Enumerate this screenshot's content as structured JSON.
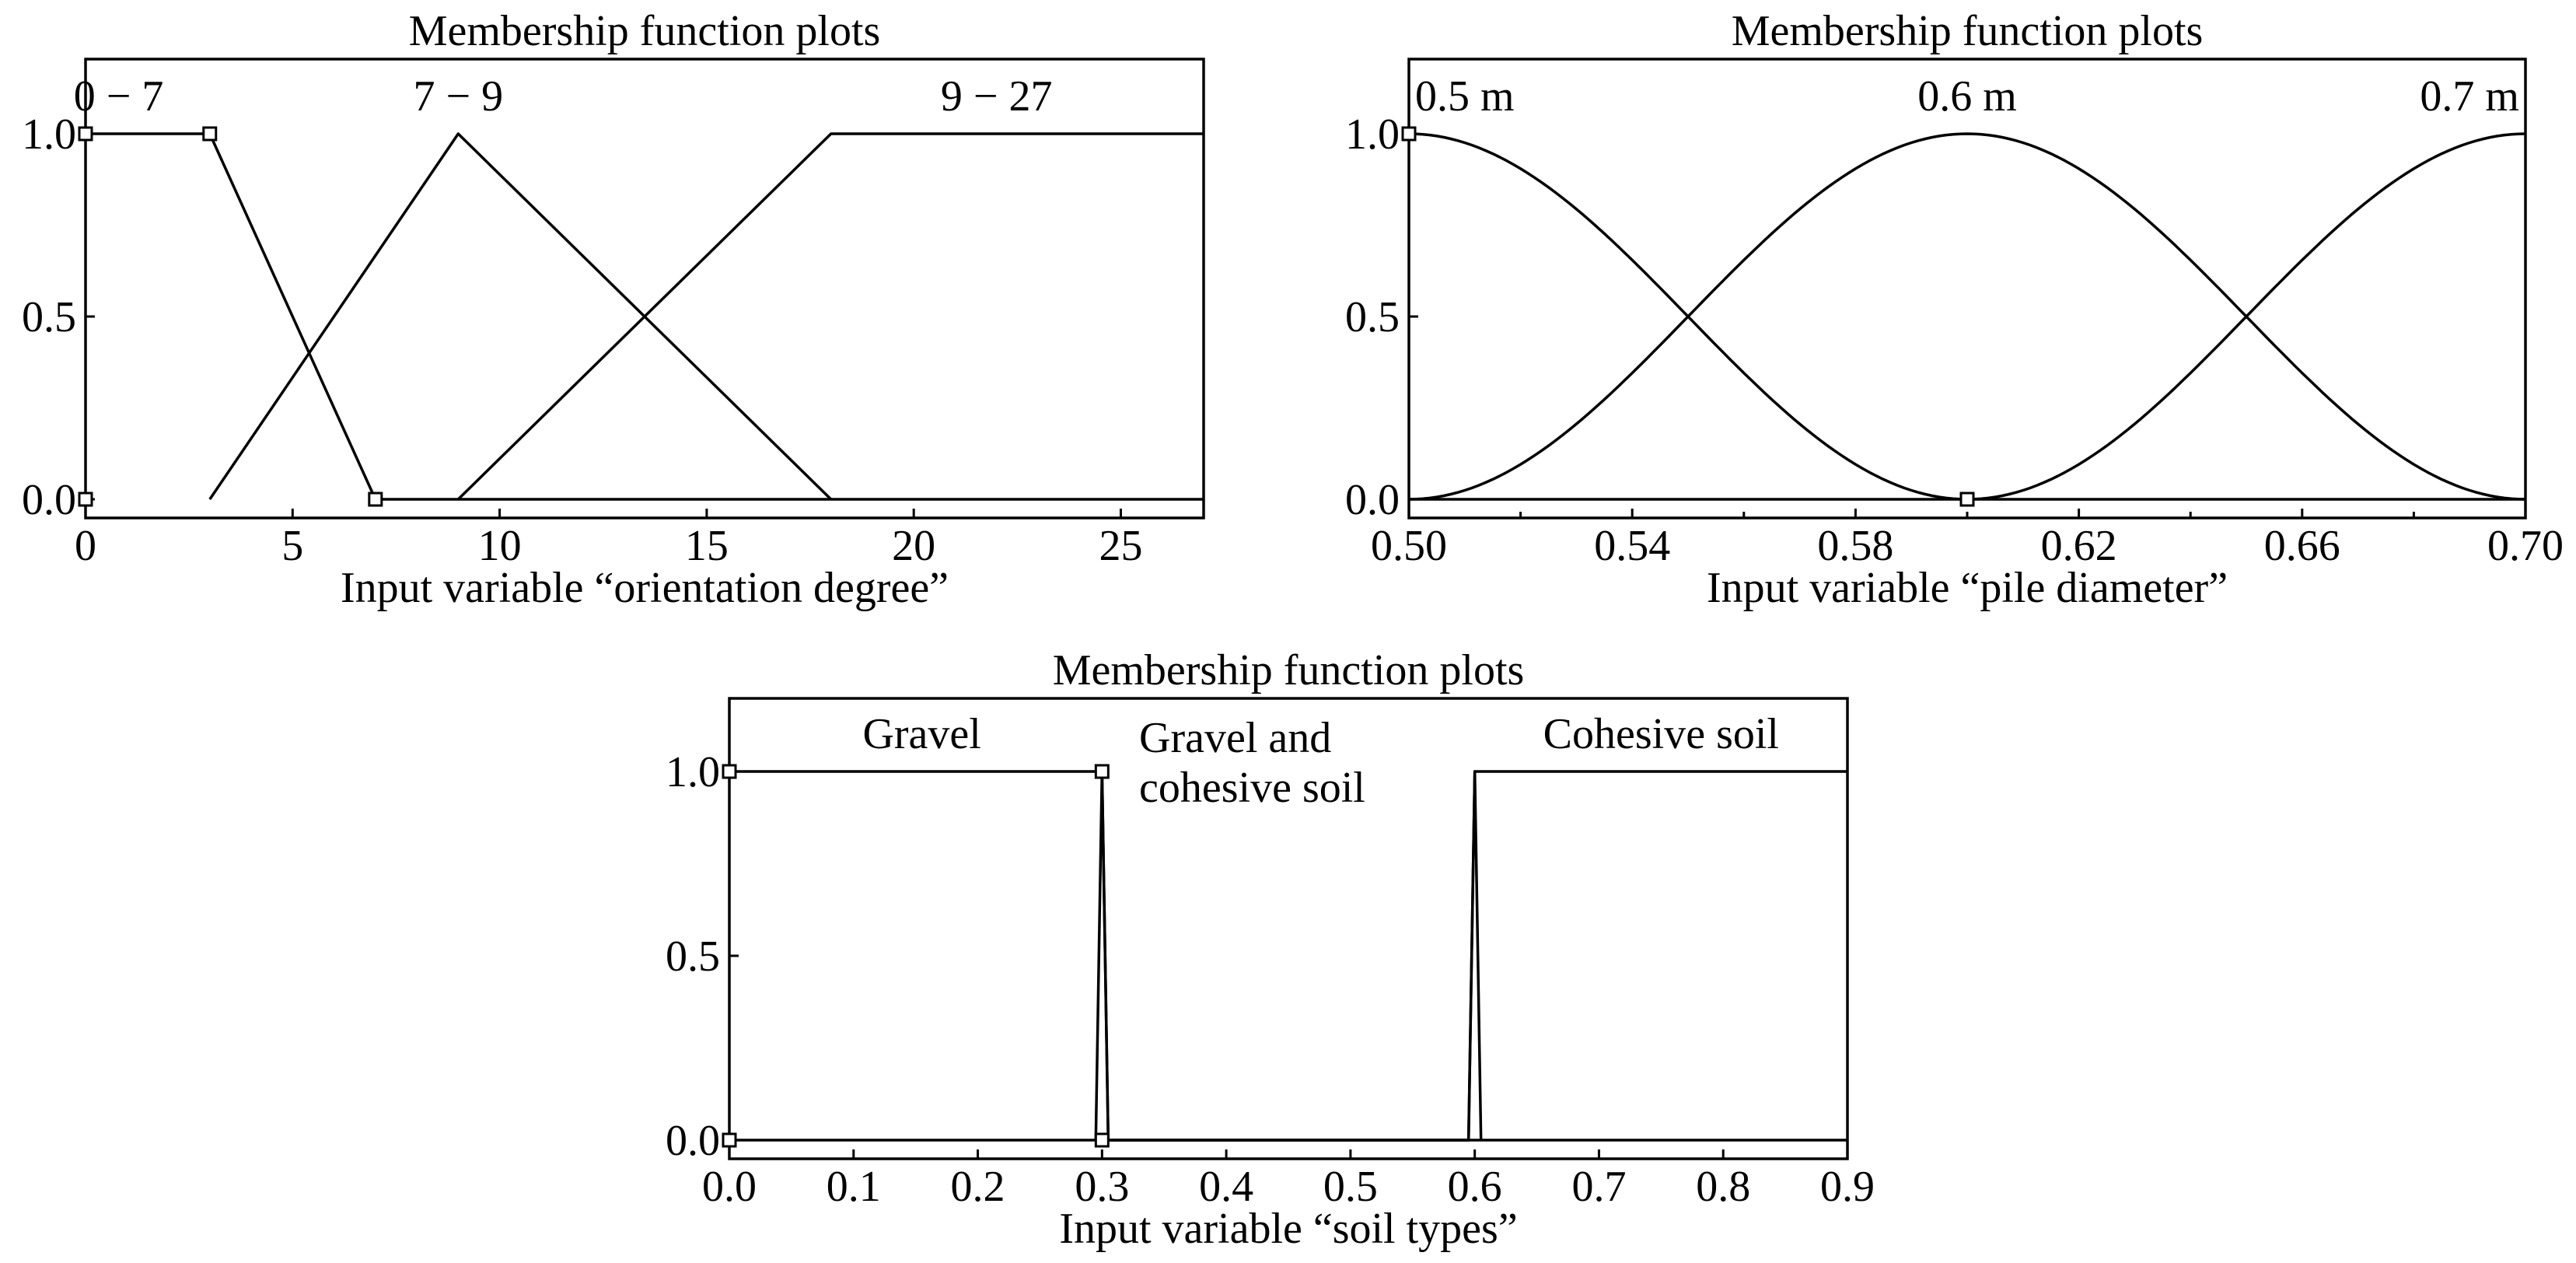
{
  "chart_data": [
    {
      "type": "line",
      "title": "Membership function plots",
      "xlabel": "Input variable “orientation degree”",
      "xlim": [
        0,
        27
      ],
      "ylim": [
        0,
        1.2
      ],
      "xticks": [
        "0",
        "5",
        "10",
        "15",
        "20",
        "25"
      ],
      "xtick_values": [
        0,
        5,
        10,
        15,
        20,
        25
      ],
      "yticks": [
        "0.0",
        "0.5",
        "1.0"
      ],
      "ytick_values": [
        0,
        0.5,
        1
      ],
      "series": [
        {
          "name": "0 − 7",
          "x": [
            0,
            3,
            7,
            27
          ],
          "y": [
            1,
            1,
            0,
            0
          ],
          "label_x": 0.8
        },
        {
          "name": "7 − 9",
          "x": [
            3,
            9,
            18
          ],
          "y": [
            0,
            1,
            0
          ],
          "label_x": 9
        },
        {
          "name": "9 − 27",
          "x": [
            9,
            18,
            27
          ],
          "y": [
            0,
            1,
            1
          ],
          "label_x": 22
        }
      ],
      "markers": [
        {
          "x": 0,
          "y": 1
        },
        {
          "x": 3,
          "y": 1
        },
        {
          "x": 7,
          "y": 0
        },
        {
          "x": 0,
          "y": 0
        }
      ]
    },
    {
      "type": "line",
      "title": "Membership function plots",
      "xlabel": "Input variable “pile diameter”",
      "xlim": [
        0.5,
        0.7
      ],
      "ylim": [
        0,
        1.2
      ],
      "xticks": [
        "0.50",
        "0.54",
        "0.58",
        "0.62",
        "0.66",
        "0.70"
      ],
      "xtick_values": [
        0.5,
        0.54,
        0.58,
        0.62,
        0.66,
        0.7
      ],
      "minor_xticks": [
        0.52,
        0.56,
        0.6,
        0.64,
        0.68
      ],
      "yticks": [
        "0.0",
        "0.5",
        "1.0"
      ],
      "ytick_values": [
        0,
        0.5,
        1
      ],
      "series": [
        {
          "name": "0.5 m",
          "shape": "cosine",
          "x": [
            0.5,
            0.6
          ],
          "y": [
            1,
            0
          ],
          "label_x": 0.51
        },
        {
          "name": "0.6 m",
          "shape": "cosine",
          "x": [
            0.5,
            0.6,
            0.7
          ],
          "y": [
            0,
            1,
            0
          ],
          "label_x": 0.6
        },
        {
          "name": "0.7 m",
          "shape": "cosine",
          "x": [
            0.6,
            0.7
          ],
          "y": [
            0,
            1
          ],
          "label_x": 0.69
        },
        {
          "name": "",
          "x": [
            0.5,
            0.7
          ],
          "y": [
            0,
            0
          ]
        }
      ],
      "markers": [
        {
          "x": 0.5,
          "y": 1
        },
        {
          "x": 0.6,
          "y": 0
        }
      ]
    },
    {
      "type": "line",
      "title": "Membership function plots",
      "xlabel": "Input variable “soil types”",
      "xlim": [
        0,
        0.9
      ],
      "ylim": [
        0,
        1.2
      ],
      "xticks": [
        "0.0",
        "0.1",
        "0.2",
        "0.3",
        "0.4",
        "0.5",
        "0.6",
        "0.7",
        "0.8",
        "0.9"
      ],
      "xtick_values": [
        0,
        0.1,
        0.2,
        0.3,
        0.4,
        0.5,
        0.6,
        0.7,
        0.8,
        0.9
      ],
      "yticks": [
        "0.0",
        "0.5",
        "1.0"
      ],
      "ytick_values": [
        0,
        0.5,
        1
      ],
      "series": [
        {
          "name": "Gravel",
          "x": [
            0,
            0.3,
            0.305,
            0.9
          ],
          "y": [
            1,
            1,
            0,
            0
          ],
          "label_x": 0.155
        },
        {
          "name": "Gravel and\ncohesive soil",
          "x": [
            0.295,
            0.3,
            0.305,
            0.595,
            0.6,
            0.605
          ],
          "y": [
            0,
            1,
            0,
            0,
            1,
            0
          ],
          "label_x": 0.43
        },
        {
          "name": "Cohesive soil",
          "x": [
            0,
            0.595,
            0.6,
            0.9
          ],
          "y": [
            0,
            0,
            1,
            1
          ],
          "label_x": 0.75
        }
      ],
      "markers": [
        {
          "x": 0,
          "y": 1
        },
        {
          "x": 0.3,
          "y": 1
        },
        {
          "x": 0,
          "y": 0
        },
        {
          "x": 0.3,
          "y": 0
        }
      ]
    }
  ]
}
